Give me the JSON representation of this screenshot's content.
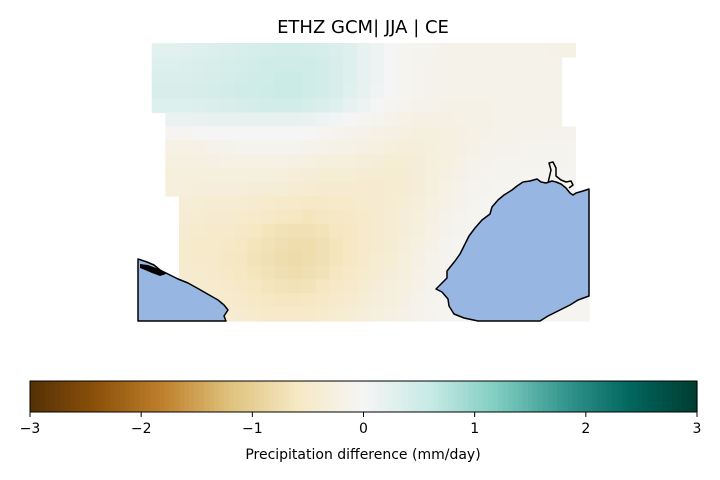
{
  "chart_data": {
    "type": "heatmap",
    "title": "ETHZ GCM| JJA | CE",
    "colorbar": {
      "label": "Precipitation difference (mm/day)",
      "range": [
        -3,
        3
      ],
      "ticks": [
        -3,
        -2,
        -1,
        0,
        1,
        2,
        3
      ],
      "tick_labels": [
        "−3",
        "−2",
        "−1",
        "0",
        "1",
        "2",
        "3"
      ],
      "colormap": "BrBG",
      "orientation": "horizontal"
    },
    "grid": {
      "rows": 20,
      "cols": 33,
      "row_values": [
        [
          null,
          0.25,
          0.25,
          0.27,
          0.3,
          0.32,
          0.35,
          0.38,
          0.4,
          0.42,
          0.45,
          0.45,
          0.42,
          0.4,
          0.35,
          0.3,
          0.2,
          0.1,
          0.0,
          -0.05,
          -0.1,
          -0.1,
          -0.12,
          -0.15,
          -0.15,
          -0.15,
          -0.15,
          -0.15,
          -0.15,
          -0.15,
          -0.18,
          -0.2,
          null
        ],
        [
          null,
          0.3,
          0.3,
          0.32,
          0.35,
          0.38,
          0.4,
          0.42,
          0.45,
          0.48,
          0.5,
          0.5,
          0.48,
          0.45,
          0.38,
          0.3,
          0.2,
          0.1,
          0.0,
          -0.05,
          -0.1,
          -0.12,
          -0.15,
          -0.15,
          -0.15,
          -0.15,
          -0.15,
          -0.15,
          -0.15,
          -0.15,
          -0.15,
          null,
          null
        ],
        [
          null,
          0.35,
          0.35,
          0.35,
          0.38,
          0.4,
          0.42,
          0.45,
          0.48,
          0.5,
          0.55,
          0.55,
          0.5,
          0.45,
          0.38,
          0.3,
          0.2,
          0.1,
          0.0,
          -0.05,
          -0.1,
          -0.12,
          -0.15,
          -0.15,
          -0.15,
          -0.15,
          -0.15,
          -0.15,
          -0.15,
          -0.15,
          -0.15,
          null,
          null
        ],
        [
          null,
          0.38,
          0.38,
          0.38,
          0.4,
          0.42,
          0.45,
          0.48,
          0.5,
          0.52,
          0.55,
          0.55,
          0.5,
          0.45,
          0.38,
          0.28,
          0.18,
          0.08,
          0.0,
          -0.05,
          -0.1,
          -0.12,
          -0.15,
          -0.15,
          -0.15,
          -0.15,
          -0.15,
          -0.15,
          -0.15,
          -0.15,
          -0.15,
          null,
          null
        ],
        [
          null,
          0.3,
          0.3,
          0.3,
          0.32,
          0.35,
          0.38,
          0.4,
          0.42,
          0.45,
          0.45,
          0.45,
          0.4,
          0.35,
          0.3,
          0.2,
          0.1,
          0.0,
          -0.05,
          -0.1,
          -0.15,
          -0.15,
          -0.18,
          -0.18,
          -0.18,
          -0.18,
          -0.15,
          -0.15,
          -0.15,
          -0.15,
          -0.15,
          null,
          null
        ],
        [
          null,
          null,
          0.15,
          0.15,
          0.15,
          0.18,
          0.2,
          0.2,
          0.2,
          0.2,
          0.2,
          0.18,
          0.15,
          0.1,
          0.05,
          0.0,
          -0.05,
          -0.1,
          -0.15,
          -0.2,
          -0.22,
          -0.22,
          -0.22,
          -0.2,
          -0.18,
          -0.18,
          -0.15,
          -0.15,
          -0.15,
          -0.15,
          -0.15,
          null,
          null
        ],
        [
          null,
          null,
          -0.05,
          -0.05,
          -0.02,
          0.0,
          0.0,
          0.0,
          0.0,
          0.0,
          0.0,
          0.0,
          -0.02,
          -0.05,
          -0.1,
          -0.12,
          -0.15,
          -0.2,
          -0.22,
          -0.25,
          -0.28,
          -0.28,
          -0.25,
          -0.22,
          -0.2,
          -0.18,
          -0.15,
          -0.15,
          -0.15,
          -0.12,
          -0.12,
          -0.12,
          null
        ],
        [
          null,
          null,
          -0.2,
          -0.2,
          -0.18,
          -0.15,
          -0.12,
          -0.1,
          -0.1,
          -0.1,
          -0.1,
          -0.1,
          -0.12,
          -0.15,
          -0.18,
          -0.2,
          -0.22,
          -0.25,
          -0.3,
          -0.32,
          -0.32,
          -0.3,
          -0.25,
          -0.22,
          -0.18,
          -0.15,
          -0.12,
          -0.12,
          -0.1,
          -0.1,
          -0.1,
          -0.1,
          null
        ],
        [
          null,
          null,
          -0.25,
          -0.25,
          -0.25,
          -0.22,
          -0.2,
          -0.2,
          -0.2,
          -0.2,
          -0.2,
          -0.22,
          -0.25,
          -0.28,
          -0.3,
          -0.3,
          -0.32,
          -0.35,
          -0.38,
          -0.38,
          -0.35,
          -0.3,
          -0.25,
          -0.2,
          -0.15,
          -0.12,
          -0.1,
          -0.1,
          -0.08,
          -0.08,
          -0.08,
          -0.08,
          null
        ],
        [
          null,
          null,
          -0.3,
          -0.3,
          -0.3,
          -0.3,
          -0.28,
          -0.28,
          -0.28,
          -0.28,
          -0.3,
          -0.32,
          -0.35,
          -0.38,
          -0.38,
          -0.38,
          -0.4,
          -0.42,
          -0.42,
          -0.4,
          -0.35,
          -0.3,
          -0.22,
          -0.18,
          -0.12,
          -0.1,
          -0.08,
          -0.08,
          -0.05,
          -0.05,
          -0.05,
          -0.05,
          null
        ],
        [
          null,
          null,
          -0.3,
          -0.3,
          -0.32,
          -0.32,
          -0.32,
          -0.32,
          -0.35,
          -0.35,
          -0.38,
          -0.4,
          -0.42,
          -0.45,
          -0.45,
          -0.45,
          -0.45,
          -0.45,
          -0.42,
          -0.4,
          -0.35,
          -0.28,
          -0.2,
          -0.15,
          -0.1,
          -0.08,
          -0.05,
          -0.05,
          -0.05,
          -0.05,
          -0.05,
          -0.05,
          null
        ],
        [
          null,
          null,
          null,
          -0.35,
          -0.38,
          -0.4,
          -0.4,
          -0.42,
          -0.45,
          -0.48,
          -0.5,
          -0.52,
          -0.55,
          -0.55,
          -0.52,
          -0.5,
          -0.48,
          -0.45,
          -0.42,
          -0.38,
          -0.32,
          -0.25,
          -0.18,
          -0.12,
          -0.08,
          -0.05,
          -0.05,
          -0.05,
          -0.05,
          -0.05,
          -0.05,
          -0.05,
          -0.05
        ],
        [
          null,
          null,
          null,
          -0.4,
          -0.42,
          -0.45,
          -0.45,
          -0.48,
          -0.52,
          -0.55,
          -0.6,
          -0.62,
          -0.65,
          -0.62,
          -0.58,
          -0.55,
          -0.5,
          -0.45,
          -0.4,
          -0.35,
          -0.3,
          -0.22,
          -0.15,
          -0.1,
          -0.05,
          -0.05,
          -0.05,
          -0.05,
          -0.05,
          -0.05,
          -0.05,
          -0.05,
          -0.05
        ],
        [
          null,
          null,
          null,
          -0.45,
          -0.48,
          -0.5,
          -0.52,
          -0.55,
          -0.6,
          -0.65,
          -0.7,
          -0.72,
          -0.72,
          -0.68,
          -0.62,
          -0.58,
          -0.52,
          -0.45,
          -0.4,
          -0.35,
          -0.28,
          -0.2,
          -0.12,
          -0.08,
          -0.05,
          -0.05,
          -0.05,
          -0.05,
          -0.05,
          -0.05,
          -0.05,
          -0.05,
          -0.05
        ],
        [
          null,
          null,
          null,
          -0.48,
          -0.5,
          -0.52,
          -0.55,
          -0.6,
          -0.65,
          -0.7,
          -0.75,
          -0.78,
          -0.78,
          -0.72,
          -0.65,
          -0.6,
          -0.52,
          -0.45,
          -0.4,
          -0.32,
          -0.25,
          -0.18,
          -0.1,
          -0.05,
          -0.05,
          -0.05,
          -0.05,
          -0.05,
          -0.05,
          -0.05,
          -0.05,
          -0.05,
          -0.05
        ],
        [
          null,
          null,
          null,
          -0.48,
          -0.5,
          -0.52,
          -0.58,
          -0.62,
          -0.68,
          -0.72,
          -0.78,
          -0.8,
          -0.78,
          -0.72,
          -0.65,
          -0.58,
          -0.5,
          -0.42,
          -0.38,
          -0.3,
          -0.22,
          -0.15,
          -0.08,
          -0.05,
          -0.05,
          -0.05,
          -0.05,
          -0.05,
          -0.05,
          -0.05,
          -0.05,
          -0.05,
          -0.05
        ],
        [
          null,
          null,
          null,
          -0.45,
          -0.48,
          -0.5,
          -0.55,
          -0.6,
          -0.65,
          -0.7,
          -0.75,
          -0.78,
          -0.75,
          -0.7,
          -0.62,
          -0.55,
          -0.48,
          -0.4,
          -0.35,
          -0.28,
          -0.2,
          -0.12,
          -0.08,
          -0.05,
          -0.05,
          -0.05,
          -0.05,
          -0.05,
          -0.05,
          -0.05,
          -0.05,
          -0.05,
          -0.05
        ],
        [
          null,
          null,
          null,
          -0.42,
          -0.45,
          -0.48,
          -0.52,
          -0.55,
          -0.6,
          -0.65,
          -0.68,
          -0.7,
          -0.68,
          -0.62,
          -0.55,
          -0.5,
          -0.42,
          -0.35,
          -0.3,
          -0.25,
          -0.18,
          -0.1,
          -0.05,
          -0.05,
          -0.05,
          -0.05,
          -0.05,
          -0.05,
          -0.05,
          -0.05,
          -0.05,
          -0.05,
          -0.05
        ],
        [
          null,
          null,
          null,
          -0.4,
          -0.42,
          -0.45,
          -0.48,
          -0.5,
          -0.55,
          -0.58,
          -0.62,
          -0.62,
          -0.6,
          -0.55,
          -0.5,
          -0.45,
          -0.38,
          -0.32,
          -0.28,
          -0.22,
          -0.15,
          -0.1,
          -0.05,
          -0.05,
          -0.05,
          -0.05,
          -0.05,
          -0.05,
          -0.05,
          -0.05,
          -0.05,
          -0.05,
          -0.05
        ],
        [
          null,
          null,
          null,
          -0.35,
          -0.38,
          -0.4,
          -0.42,
          -0.45,
          -0.48,
          -0.5,
          -0.52,
          -0.52,
          -0.5,
          -0.48,
          -0.42,
          -0.38,
          -0.32,
          -0.28,
          -0.22,
          -0.18,
          -0.12,
          -0.08,
          -0.05,
          -0.05,
          -0.05,
          -0.05,
          -0.05,
          -0.05,
          -0.05,
          -0.05,
          -0.05,
          -0.05,
          -0.05
        ]
      ]
    },
    "features": [
      "coastlines",
      "ocean"
    ],
    "ocean_color": "#97b6e1",
    "coastline_color": "#000000"
  }
}
